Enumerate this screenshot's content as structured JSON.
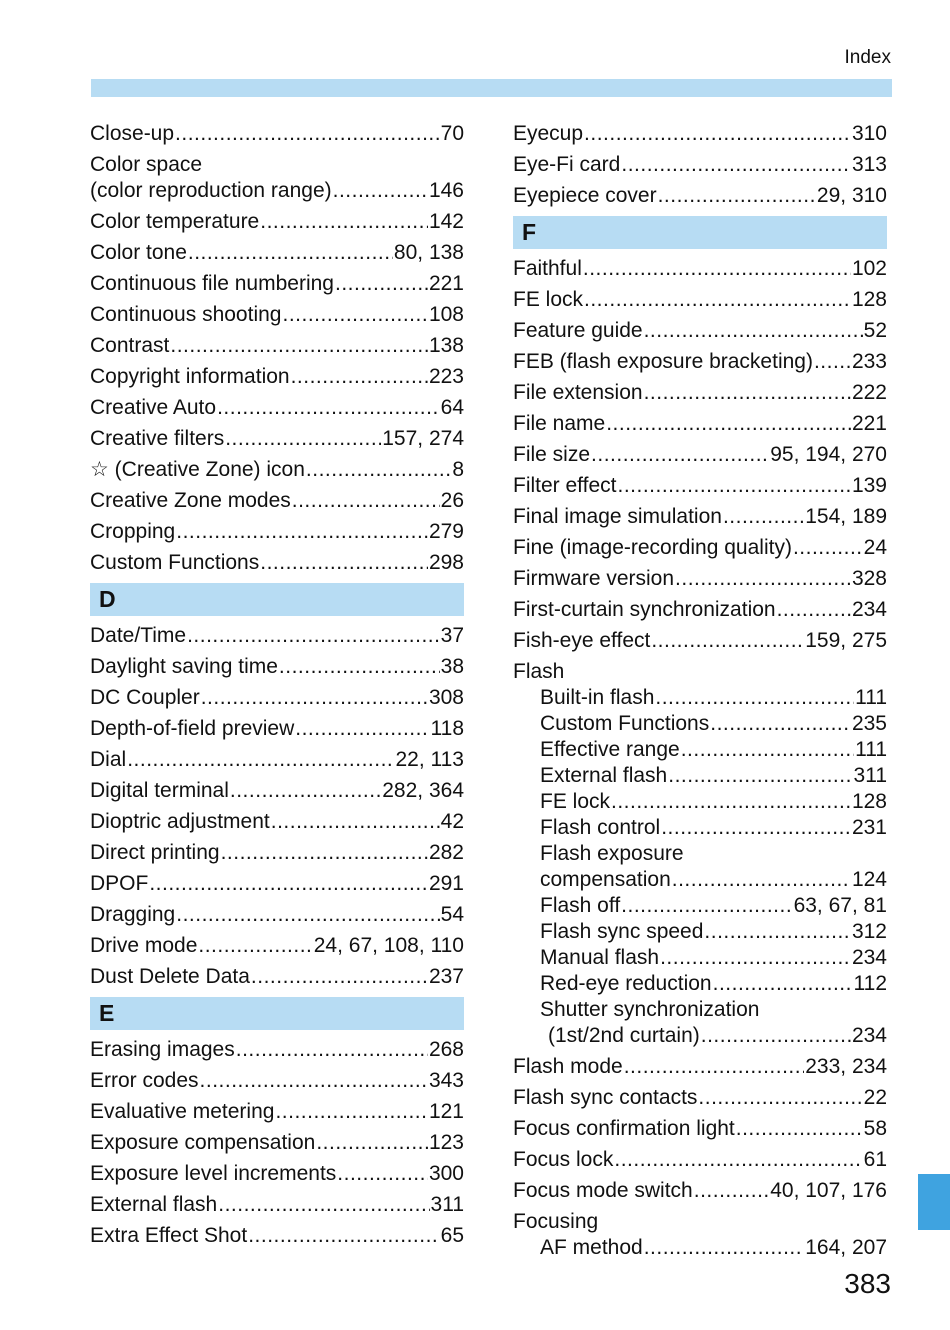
{
  "header": {
    "label": "Index"
  },
  "page_number": "383",
  "left_column": [
    {
      "name": "Close-up",
      "page": "70"
    },
    {
      "name": "Color space",
      "page": ""
    },
    {
      "name": "(color reproduction range)",
      "page": "146",
      "cont": true
    },
    {
      "name": "Color temperature",
      "page": "142"
    },
    {
      "name": "Color tone",
      "page": "80, 138"
    },
    {
      "name": "Continuous file numbering",
      "page": "221"
    },
    {
      "name": "Continuous shooting",
      "page": "108"
    },
    {
      "name": "Contrast",
      "page": "138"
    },
    {
      "name": "Copyright information",
      "page": "223"
    },
    {
      "name": "Creative Auto",
      "page": "64"
    },
    {
      "name": "Creative filters",
      "page": "157, 274"
    },
    {
      "name": "☆ (Creative Zone) icon",
      "page": "8"
    },
    {
      "name": "Creative Zone modes",
      "page": "26"
    },
    {
      "name": "Cropping",
      "page": "279"
    },
    {
      "name": "Custom Functions",
      "page": "298"
    },
    {
      "section": "D"
    },
    {
      "name": "Date/Time",
      "page": "37"
    },
    {
      "name": "Daylight saving time",
      "page": "38"
    },
    {
      "name": "DC Coupler",
      "page": "308"
    },
    {
      "name": "Depth-of-field preview",
      "page": "118"
    },
    {
      "name": "Dial",
      "page": "22, 113"
    },
    {
      "name": "Digital terminal",
      "page": "282, 364"
    },
    {
      "name": "Dioptric adjustment",
      "page": "42"
    },
    {
      "name": "Direct printing",
      "page": "282"
    },
    {
      "name": "DPOF",
      "page": "291"
    },
    {
      "name": "Dragging",
      "page": "54"
    },
    {
      "name": "Drive mode",
      "page": "24, 67, 108, 110"
    },
    {
      "name": "Dust Delete Data",
      "page": "237"
    },
    {
      "section": "E"
    },
    {
      "name": "Erasing images",
      "page": "268"
    },
    {
      "name": "Error codes",
      "page": "343"
    },
    {
      "name": "Evaluative metering",
      "page": "121"
    },
    {
      "name": "Exposure compensation",
      "page": "123"
    },
    {
      "name": "Exposure level increments",
      "page": "300"
    },
    {
      "name": "External flash",
      "page": "311"
    },
    {
      "name": "Extra Effect Shot",
      "page": "65"
    }
  ],
  "right_column": [
    {
      "name": "Eyecup",
      "page": "310"
    },
    {
      "name": "Eye-Fi card",
      "page": "313"
    },
    {
      "name": "Eyepiece cover",
      "page": "29, 310"
    },
    {
      "section": "F"
    },
    {
      "name": "Faithful",
      "page": "102"
    },
    {
      "name": "FE lock",
      "page": "128"
    },
    {
      "name": "Feature guide",
      "page": "52"
    },
    {
      "name": "FEB (flash exposure bracketing)",
      "page": "233"
    },
    {
      "name": "File extension",
      "page": "222"
    },
    {
      "name": "File name",
      "page": "221"
    },
    {
      "name": "File size",
      "page": "95, 194, 270"
    },
    {
      "name": "Filter effect",
      "page": "139"
    },
    {
      "name": "Final image simulation",
      "page": "154, 189"
    },
    {
      "name": "Fine (image-recording quality)",
      "page": "24"
    },
    {
      "name": "Firmware version",
      "page": "328"
    },
    {
      "name": "First-curtain synchronization",
      "page": "234"
    },
    {
      "name": "Fish-eye effect",
      "page": "159, 275"
    },
    {
      "name": "Flash",
      "page": ""
    },
    {
      "name": "Built-in flash",
      "page": "111",
      "sub": true
    },
    {
      "name": "Custom Functions",
      "page": "235",
      "sub": true
    },
    {
      "name": "Effective range",
      "page": "111",
      "sub": true
    },
    {
      "name": "External flash",
      "page": "311",
      "sub": true
    },
    {
      "name": "FE lock",
      "page": "128",
      "sub": true
    },
    {
      "name": "Flash control",
      "page": "231",
      "sub": true
    },
    {
      "name": "Flash exposure",
      "page": "",
      "sub": true
    },
    {
      "name": "compensation",
      "page": "124",
      "sub": true
    },
    {
      "name": "Flash off",
      "page": "63, 67, 81",
      "sub": true
    },
    {
      "name": "Flash sync speed",
      "page": "312",
      "sub": true
    },
    {
      "name": "Manual flash",
      "page": "234",
      "sub": true
    },
    {
      "name": "Red-eye reduction",
      "page": "112",
      "sub": true
    },
    {
      "name": "Shutter synchronization",
      "page": "",
      "sub": true
    },
    {
      "name": "(1st/2nd curtain)",
      "page": "234",
      "sub2": true
    },
    {
      "name": "Flash mode",
      "page": "233, 234"
    },
    {
      "name": "Flash sync contacts",
      "page": "22"
    },
    {
      "name": "Focus confirmation light",
      "page": "58"
    },
    {
      "name": "Focus lock",
      "page": "61"
    },
    {
      "name": "Focus mode switch",
      "page": "40, 107, 176"
    },
    {
      "name": "Focusing",
      "page": ""
    },
    {
      "name": "AF method",
      "page": "164, 207",
      "sub": true
    }
  ]
}
